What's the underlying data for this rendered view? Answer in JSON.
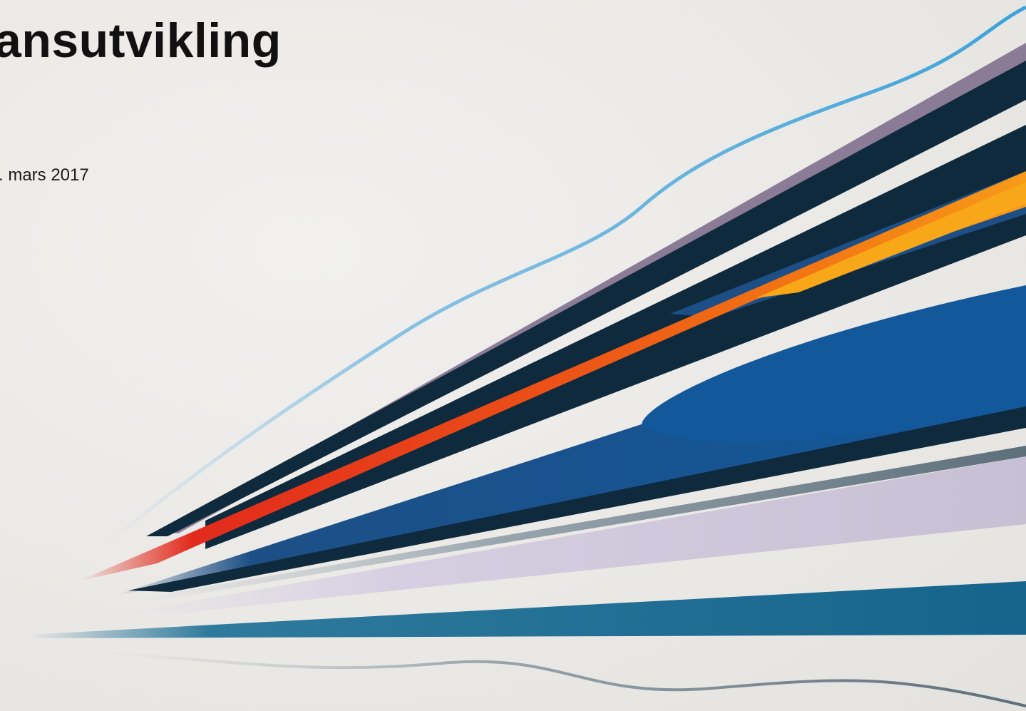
{
  "slide": {
    "title": "ansutvikling",
    "date": ". mars 2017"
  },
  "colors": {
    "background": "#ecebe8",
    "title_text": "#111111",
    "stripe_navy": "#0f2a3d",
    "stripe_blue": "#12589a",
    "stripe_red": "#e22a1c",
    "stripe_orange": "#f37a13",
    "stripe_yellow": "#f8a718",
    "stripe_lavender": "#8a7b96",
    "stripe_light_blue": "#45a7d8",
    "stripe_teal": "#1a6e95",
    "stripe_pale_lilac": "#cbc3d8"
  }
}
